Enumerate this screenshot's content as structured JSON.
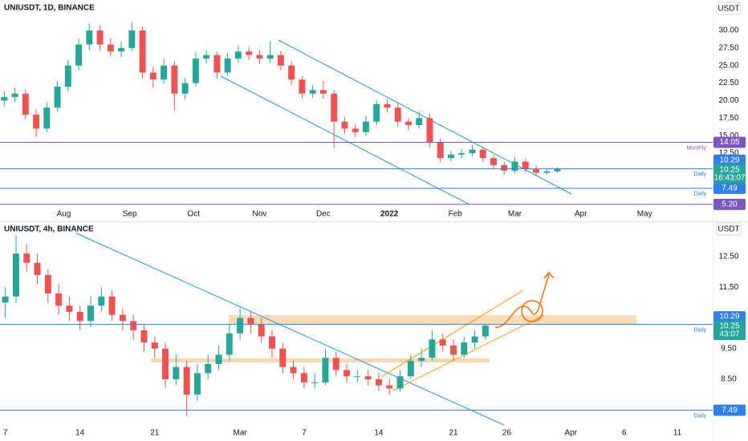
{
  "chart_data": [
    {
      "type": "candlestick",
      "title": "UNIUSDT, 1D, BINANCE",
      "currency": "USDT",
      "xlim": [
        0,
        335
      ],
      "ylim": [
        4.84,
        34.35
      ],
      "xticks": [
        {
          "value": 30,
          "label": "Aug"
        },
        {
          "value": 61,
          "label": "Sep"
        },
        {
          "value": 91,
          "label": "Oct"
        },
        {
          "value": 122,
          "label": "Nov"
        },
        {
          "value": 152,
          "label": "Dec"
        },
        {
          "value": 183,
          "label": "2022"
        },
        {
          "value": 214,
          "label": "Feb"
        },
        {
          "value": 242,
          "label": "Mar"
        },
        {
          "value": 273,
          "label": "Apr"
        },
        {
          "value": 303,
          "label": "May"
        }
      ],
      "yticks": [
        {
          "value": 12.5,
          "label": "12.50"
        },
        {
          "value": 15,
          "label": "15.00"
        },
        {
          "value": 17.5,
          "label": "17.50"
        },
        {
          "value": 20,
          "label": "20.00"
        },
        {
          "value": 22.5,
          "label": "22.50"
        },
        {
          "value": 25,
          "label": "25.00"
        },
        {
          "value": 27.5,
          "label": "27.50"
        },
        {
          "value": 30,
          "label": "30.00"
        }
      ],
      "up_color": "#26a69a",
      "down_color": "#ef5350",
      "x": [
        2,
        7,
        12,
        17,
        22,
        27,
        32,
        37,
        42,
        47,
        52,
        57,
        62,
        67,
        72,
        77,
        82,
        87,
        92,
        97,
        102,
        107,
        112,
        117,
        122,
        127,
        132,
        137,
        142,
        147,
        152,
        157,
        162,
        167,
        172,
        177,
        182,
        187,
        192,
        197,
        202,
        207,
        212,
        217,
        222,
        227,
        232,
        237,
        242,
        247,
        252,
        257,
        262
      ],
      "ohlc": [
        [
          20,
          21.3,
          19.2,
          20.5
        ],
        [
          20.5,
          21.8,
          19.8,
          21
        ],
        [
          21,
          21.6,
          17.3,
          18
        ],
        [
          18,
          18.7,
          14.8,
          16
        ],
        [
          16,
          19.8,
          15.5,
          19
        ],
        [
          19,
          22.8,
          18.4,
          22
        ],
        [
          22,
          25.8,
          21.3,
          25
        ],
        [
          25,
          28.9,
          24.3,
          28
        ],
        [
          28,
          31,
          27.2,
          30
        ],
        [
          30,
          30.8,
          27.2,
          28
        ],
        [
          28,
          28.9,
          26.3,
          27
        ],
        [
          27,
          28.4,
          26.2,
          27.5
        ],
        [
          27.5,
          31.2,
          27,
          30
        ],
        [
          30,
          30.6,
          23.2,
          24
        ],
        [
          24,
          24.8,
          21.8,
          23
        ],
        [
          23,
          25.9,
          22.4,
          25
        ],
        [
          25,
          25.6,
          18.6,
          21
        ],
        [
          21,
          23.2,
          20.2,
          22.5
        ],
        [
          22.5,
          26.8,
          22,
          26
        ],
        [
          26,
          27.2,
          25.3,
          26.5
        ],
        [
          26.5,
          27,
          23.2,
          24
        ],
        [
          24,
          26.8,
          23.5,
          26
        ],
        [
          26,
          27.9,
          25.4,
          27
        ],
        [
          27,
          27.7,
          25.8,
          26.5
        ],
        [
          26.5,
          27.2,
          25.2,
          26
        ],
        [
          26,
          28.5,
          25.4,
          26.5
        ],
        [
          26.5,
          27.1,
          24.3,
          25
        ],
        [
          25,
          25.6,
          22.2,
          23
        ],
        [
          23,
          23.5,
          20.3,
          21
        ],
        [
          21,
          22.2,
          20.4,
          21.5
        ],
        [
          21.5,
          22.8,
          20.3,
          21
        ],
        [
          21,
          21.5,
          13.2,
          17
        ],
        [
          17,
          17.6,
          15.3,
          16
        ],
        [
          16,
          16.6,
          14.8,
          15.5
        ],
        [
          15.5,
          17.8,
          15,
          17
        ],
        [
          17,
          20,
          16.5,
          19.5
        ],
        [
          19.5,
          20.2,
          18.3,
          19
        ],
        [
          19,
          19.6,
          16.3,
          17
        ],
        [
          17,
          17.5,
          15.8,
          16.5
        ],
        [
          16.5,
          18.4,
          16,
          17.5
        ],
        [
          17.5,
          18.1,
          13.3,
          14
        ],
        [
          14,
          14.6,
          11.2,
          11.8
        ],
        [
          11.8,
          12.9,
          11.3,
          12.3
        ],
        [
          12.3,
          13.1,
          11.8,
          12.5
        ],
        [
          12.5,
          13.7,
          12,
          13
        ],
        [
          13,
          13.4,
          11.3,
          11.8
        ],
        [
          11.8,
          12.3,
          10.2,
          10.8
        ],
        [
          10.8,
          11.3,
          9.4,
          10
        ],
        [
          10,
          11.9,
          9.6,
          11.3
        ],
        [
          11.3,
          11.7,
          9.8,
          10.2
        ],
        [
          10.2,
          10.7,
          9.3,
          9.7
        ],
        [
          9.7,
          10.3,
          9.4,
          9.9
        ],
        [
          9.9,
          10.5,
          9.7,
          10.25
        ]
      ],
      "levels": [
        {
          "value": 14.05,
          "tag": "14.05",
          "label": "Monthly",
          "color": "#7e57c2"
        },
        {
          "value": 10.29,
          "tag": "10.29",
          "label": "Daily",
          "color": "#2f80ed"
        },
        {
          "value": 7.49,
          "tag": "7.49",
          "label": "Daily",
          "color": "#2f80ed"
        },
        {
          "value": 5.2,
          "tag": "5.20",
          "color": "#7e57c2"
        }
      ],
      "last": {
        "value": 10.25,
        "tag": "10.25",
        "countdown": "16:43:07",
        "color": "#26a69a"
      }
    },
    {
      "type": "candlestick",
      "title": "UNIUSDT, 4h, BINANCE",
      "currency": "USDT",
      "xlim": [
        -0.5,
        66.3
      ],
      "ylim": [
        7.01,
        13.6
      ],
      "xticks": [
        {
          "value": 0,
          "label": "7"
        },
        {
          "value": 7,
          "label": "14"
        },
        {
          "value": 14,
          "label": "21"
        },
        {
          "value": 22,
          "label": "Mar"
        },
        {
          "value": 28,
          "label": "7"
        },
        {
          "value": 35,
          "label": "14"
        },
        {
          "value": 42,
          "label": "21"
        },
        {
          "value": 47,
          "label": "26"
        },
        {
          "value": 53,
          "label": "Apr"
        },
        {
          "value": 58,
          "label": "6"
        },
        {
          "value": 63,
          "label": "11"
        }
      ],
      "yticks": [
        {
          "value": 8.5,
          "label": "8.50"
        },
        {
          "value": 9.5,
          "label": "9.50"
        },
        {
          "value": 11.5,
          "label": "11.50"
        },
        {
          "value": 12.5,
          "label": "12.50"
        }
      ],
      "up_color": "#26a69a",
      "down_color": "#ef5350",
      "x": [
        0,
        1,
        2,
        3,
        4,
        5,
        6,
        7,
        8,
        9,
        10,
        11,
        12,
        13,
        14,
        15,
        16,
        17,
        18,
        19,
        20,
        21,
        22,
        23,
        24,
        25,
        26,
        27,
        28,
        29,
        30,
        31,
        32,
        33,
        34,
        35,
        36,
        37,
        38,
        39,
        40,
        41,
        42,
        43,
        44,
        45
      ],
      "ohlc": [
        [
          11.0,
          11.5,
          10.5,
          11.2
        ],
        [
          11.2,
          13.2,
          11.0,
          12.6
        ],
        [
          12.6,
          12.9,
          12.0,
          12.3
        ],
        [
          12.3,
          12.6,
          11.6,
          11.9
        ],
        [
          11.9,
          12.1,
          11.0,
          11.3
        ],
        [
          11.3,
          11.6,
          10.6,
          10.9
        ],
        [
          10.9,
          11.2,
          10.4,
          10.7
        ],
        [
          10.7,
          10.9,
          10.1,
          10.4
        ],
        [
          10.4,
          11.2,
          10.2,
          10.9
        ],
        [
          10.9,
          11.5,
          10.7,
          11.2
        ],
        [
          11.2,
          11.4,
          10.4,
          10.6
        ],
        [
          10.6,
          10.8,
          10.1,
          10.4
        ],
        [
          10.4,
          10.6,
          9.8,
          10.1
        ],
        [
          10.1,
          10.3,
          9.4,
          9.7
        ],
        [
          9.7,
          9.9,
          9.2,
          9.5
        ],
        [
          9.5,
          9.7,
          8.2,
          8.5
        ],
        [
          8.5,
          9.3,
          8.3,
          8.9
        ],
        [
          8.9,
          9.1,
          7.3,
          8.0
        ],
        [
          8.0,
          9.0,
          7.8,
          8.7
        ],
        [
          8.7,
          9.3,
          8.5,
          9.0
        ],
        [
          9.0,
          9.6,
          8.8,
          9.3
        ],
        [
          9.3,
          10.3,
          9.1,
          10.0
        ],
        [
          10.0,
          10.8,
          9.8,
          10.5
        ],
        [
          10.5,
          10.7,
          10.0,
          10.3
        ],
        [
          10.3,
          10.5,
          9.7,
          9.9
        ],
        [
          9.9,
          10.1,
          9.2,
          9.5
        ],
        [
          9.5,
          9.7,
          8.7,
          8.9
        ],
        [
          8.9,
          9.1,
          8.5,
          8.7
        ],
        [
          8.7,
          8.9,
          8.2,
          8.4
        ],
        [
          8.4,
          8.7,
          8.2,
          8.4
        ],
        [
          8.4,
          9.5,
          8.3,
          9.2
        ],
        [
          9.2,
          9.4,
          8.6,
          8.8
        ],
        [
          8.8,
          9.0,
          8.4,
          8.6
        ],
        [
          8.6,
          8.8,
          8.4,
          8.6
        ],
        [
          8.6,
          8.8,
          8.3,
          8.5
        ],
        [
          8.5,
          8.7,
          8.1,
          8.3
        ],
        [
          8.3,
          8.5,
          8.0,
          8.2
        ],
        [
          8.2,
          8.8,
          8.1,
          8.6
        ],
        [
          8.6,
          9.3,
          8.5,
          9.1
        ],
        [
          9.1,
          9.5,
          8.9,
          9.2
        ],
        [
          9.2,
          10.1,
          9.1,
          9.8
        ],
        [
          9.8,
          10.0,
          9.4,
          9.6
        ],
        [
          9.6,
          9.8,
          9.1,
          9.3
        ],
        [
          9.3,
          9.9,
          9.2,
          9.7
        ],
        [
          9.7,
          10.1,
          9.5,
          9.9
        ],
        [
          9.9,
          10.3,
          9.8,
          10.25
        ]
      ],
      "levels": [
        {
          "value": 10.29,
          "tag": "10.29",
          "label": "Daily",
          "color": "#2f80ed"
        },
        {
          "value": 7.49,
          "tag": "7.49",
          "label": "Daily",
          "color": "#2f80ed"
        }
      ],
      "last": {
        "value": 10.25,
        "tag": "10.25",
        "countdown": "43:07",
        "color": "#26a69a"
      }
    }
  ]
}
